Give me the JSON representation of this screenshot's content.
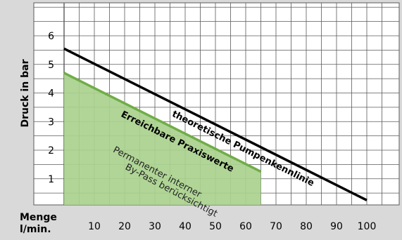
{
  "chart_data": {
    "type": "line",
    "ylabel": "Druck in bar",
    "xlabel": "Menge\nl/min.",
    "x_ticks": [
      10,
      20,
      30,
      40,
      50,
      60,
      70,
      80,
      90,
      100
    ],
    "y_ticks": [
      1,
      2,
      3,
      4,
      5,
      6
    ],
    "xlim": [
      0,
      105
    ],
    "ylim": [
      0,
      7
    ],
    "grid": true,
    "series": [
      {
        "name": "theoretische Pumpenkennlinie",
        "kind": "line",
        "points": [
          [
            0,
            5.55
          ],
          [
            100,
            0.25
          ]
        ],
        "color": "#000000"
      },
      {
        "name": "Erreichbare Praxiswerte",
        "kind": "area",
        "points": [
          [
            0,
            4.7
          ],
          [
            65,
            1.25
          ]
        ],
        "fill": "#a9d18e",
        "color": "#70ad47"
      }
    ],
    "annotations": [
      {
        "text": "Permanenter interner",
        "x": 16,
        "y": 1.95,
        "angle": 28
      },
      {
        "text": "By-Pass berücksichtigt",
        "x": 20,
        "y": 1.35,
        "angle": 28
      }
    ]
  }
}
